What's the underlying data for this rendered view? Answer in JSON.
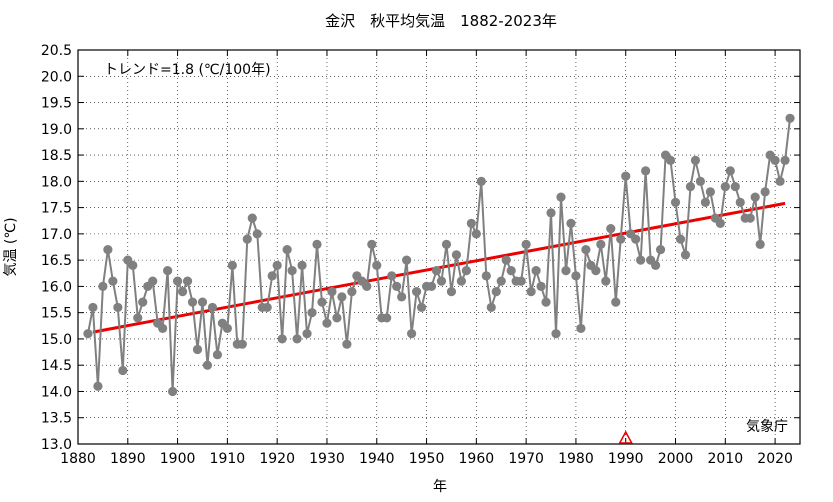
{
  "chart_data": {
    "type": "line",
    "title": "金沢　秋平均気温　1882-2023年",
    "xlabel": "年",
    "ylabel": "気温 (℃)",
    "trend_label": "トレンド=1.8 (℃/100年)",
    "source": "気象庁",
    "xlim": [
      1880,
      2025
    ],
    "ylim": [
      13.0,
      20.5
    ],
    "xticks": [
      1880,
      1890,
      1900,
      1910,
      1920,
      1930,
      1940,
      1950,
      1960,
      1970,
      1980,
      1990,
      2000,
      2010,
      2020
    ],
    "yticks": [
      13.0,
      13.5,
      14.0,
      14.5,
      15.0,
      15.5,
      16.0,
      16.5,
      17.0,
      17.5,
      18.0,
      18.5,
      19.0,
      19.5,
      20.0,
      20.5
    ],
    "grid": true,
    "series_color": "#808080",
    "trend_color": "#ee0000",
    "marker_color": "#ee0000",
    "station_change_year": 1990,
    "trend": {
      "x": [
        1883,
        2022
      ],
      "y": [
        15.13,
        17.58
      ]
    },
    "x": [
      1882,
      1883,
      1884,
      1885,
      1886,
      1887,
      1888,
      1889,
      1890,
      1891,
      1892,
      1893,
      1894,
      1895,
      1896,
      1897,
      1898,
      1899,
      1900,
      1901,
      1902,
      1903,
      1904,
      1905,
      1906,
      1907,
      1908,
      1909,
      1910,
      1911,
      1912,
      1913,
      1914,
      1915,
      1916,
      1917,
      1918,
      1919,
      1920,
      1921,
      1922,
      1923,
      1924,
      1925,
      1926,
      1927,
      1928,
      1929,
      1930,
      1931,
      1932,
      1933,
      1934,
      1935,
      1936,
      1937,
      1938,
      1939,
      1940,
      1941,
      1942,
      1943,
      1944,
      1945,
      1946,
      1947,
      1948,
      1949,
      1950,
      1951,
      1952,
      1953,
      1954,
      1955,
      1956,
      1957,
      1958,
      1959,
      1960,
      1961,
      1962,
      1963,
      1964,
      1965,
      1966,
      1967,
      1968,
      1969,
      1970,
      1971,
      1972,
      1973,
      1974,
      1975,
      1976,
      1977,
      1978,
      1979,
      1980,
      1981,
      1982,
      1983,
      1984,
      1985,
      1986,
      1987,
      1988,
      1989,
      1990,
      1991,
      1992,
      1993,
      1994,
      1995,
      1996,
      1997,
      1998,
      1999,
      2000,
      2001,
      2002,
      2003,
      2004,
      2005,
      2006,
      2007,
      2008,
      2009,
      2010,
      2011,
      2012,
      2013,
      2014,
      2015,
      2016,
      2017,
      2018,
      2019,
      2020,
      2021,
      2022,
      2023
    ],
    "values": [
      15.1,
      15.6,
      14.1,
      16.0,
      16.7,
      16.1,
      15.6,
      14.4,
      16.5,
      16.4,
      15.4,
      15.7,
      16.0,
      16.1,
      15.3,
      15.2,
      16.3,
      14.0,
      16.1,
      15.9,
      16.1,
      15.7,
      14.8,
      15.7,
      14.5,
      15.6,
      14.7,
      15.3,
      15.2,
      16.4,
      14.9,
      14.9,
      16.9,
      17.3,
      17.0,
      15.6,
      15.6,
      16.2,
      16.4,
      15.0,
      16.7,
      16.3,
      15.0,
      16.4,
      15.1,
      15.5,
      16.8,
      15.7,
      15.3,
      15.9,
      15.4,
      15.8,
      14.9,
      15.9,
      16.2,
      16.1,
      16.0,
      16.8,
      16.4,
      15.4,
      15.4,
      16.2,
      16.0,
      15.8,
      16.5,
      15.1,
      15.9,
      15.6,
      16.0,
      16.0,
      16.3,
      16.1,
      16.8,
      15.9,
      16.6,
      16.1,
      16.3,
      17.2,
      17.0,
      18.0,
      16.2,
      15.6,
      15.9,
      16.1,
      16.5,
      16.3,
      16.1,
      16.1,
      16.8,
      15.9,
      16.3,
      16.0,
      15.7,
      17.4,
      15.1,
      17.7,
      16.3,
      17.2,
      16.2,
      15.2,
      16.7,
      16.4,
      16.3,
      16.8,
      16.1,
      17.1,
      15.7,
      16.9,
      18.1,
      17.0,
      16.9,
      16.5,
      18.2,
      16.5,
      16.4,
      16.7,
      18.5,
      18.4,
      17.6,
      16.9,
      16.6,
      17.9,
      18.4,
      18.0,
      17.6,
      17.8,
      17.3,
      17.2,
      17.9,
      18.2,
      17.9,
      17.6,
      17.3,
      17.3,
      17.7,
      16.8,
      17.8,
      18.5,
      18.4,
      18.0,
      18.4,
      19.2
    ]
  }
}
